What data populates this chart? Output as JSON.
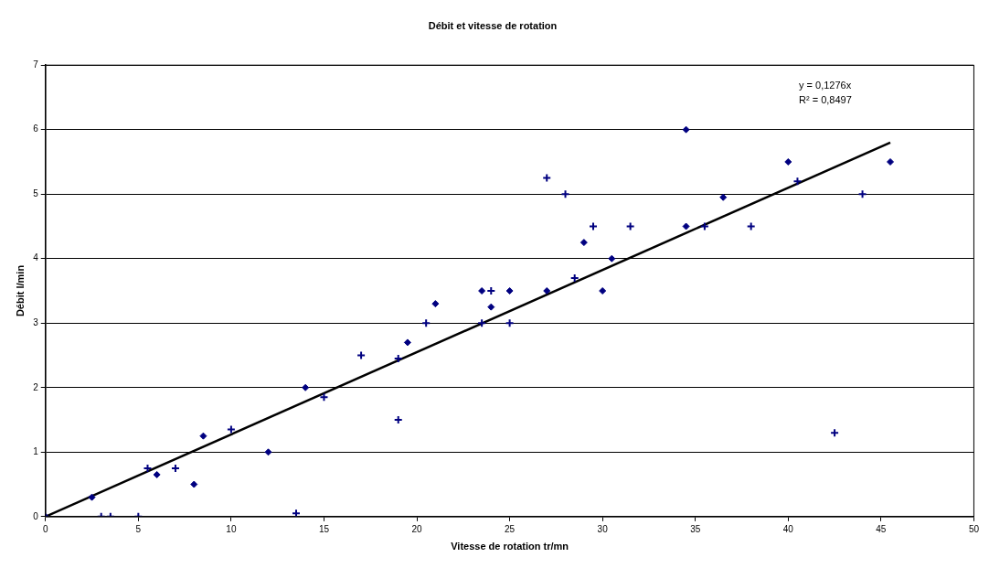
{
  "chart_data": {
    "type": "scatter",
    "title": "Débit et vitesse de rotation",
    "xlabel": "Vitesse de rotation tr/mn",
    "ylabel": "Débit l/min",
    "xlim": [
      0,
      50
    ],
    "xticks": [
      0,
      5,
      10,
      15,
      20,
      25,
      30,
      35,
      40,
      45,
      50
    ],
    "ylim": [
      0,
      7
    ],
    "yticks": [
      0,
      1,
      2,
      3,
      4,
      5,
      6,
      7
    ],
    "grid": "y",
    "legend": false,
    "annotations": [
      "y = 0,1276x",
      "R² = 0,8497"
    ],
    "series": [
      {
        "type": "scatter",
        "marker": "diamond",
        "color": "#000080",
        "x": [
          0,
          2.5,
          6,
          8,
          8.5,
          12,
          14,
          19.5,
          21,
          23.5,
          24,
          25,
          27,
          29,
          30,
          30.5,
          34.5,
          34.5,
          36.5,
          40,
          45.5
        ],
        "values": [
          0,
          0.3,
          0.65,
          0.5,
          1.25,
          1.0,
          2.0,
          2.7,
          3.3,
          3.5,
          3.25,
          3.5,
          3.5,
          4.25,
          3.5,
          4.0,
          6.0,
          4.5,
          4.95,
          5.5,
          5.5
        ]
      },
      {
        "type": "scatter",
        "marker": "cross",
        "color": "#000080",
        "x": [
          3,
          3.5,
          5,
          5.5,
          7,
          10,
          13.5,
          15,
          17,
          19,
          19,
          20.5,
          23.5,
          24,
          25,
          27,
          28,
          28.5,
          29.5,
          31.5,
          35.5,
          38,
          40.5,
          42.5,
          44
        ],
        "values": [
          0,
          0,
          0,
          0.75,
          0.75,
          1.35,
          0.05,
          1.85,
          2.5,
          2.45,
          1.5,
          3.0,
          3.0,
          3.5,
          3.0,
          5.25,
          5.0,
          3.7,
          4.5,
          4.5,
          4.5,
          4.5,
          5.2,
          1.3,
          5.0
        ]
      },
      {
        "type": "line",
        "marker": "none",
        "color": "#000000",
        "x": [
          0,
          45.5
        ],
        "values": [
          0,
          5.8
        ]
      }
    ]
  }
}
